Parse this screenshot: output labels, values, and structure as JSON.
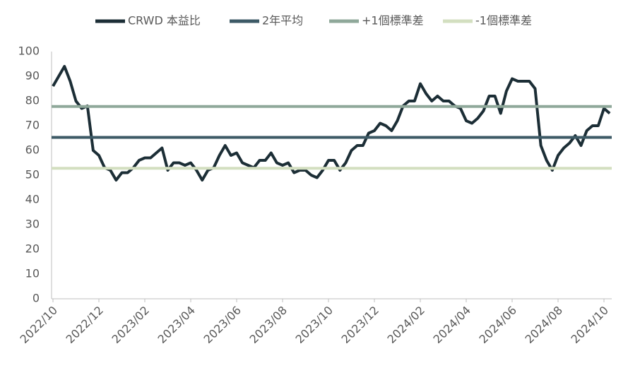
{
  "chart_data": {
    "type": "line",
    "categories": [
      "2022/10",
      null,
      null,
      null,
      null,
      null,
      null,
      null,
      "2022/12",
      null,
      null,
      null,
      null,
      null,
      null,
      null,
      "2023/02",
      null,
      null,
      null,
      null,
      null,
      null,
      null,
      "2023/04",
      null,
      null,
      null,
      null,
      null,
      null,
      null,
      "2023/06",
      null,
      null,
      null,
      null,
      null,
      null,
      null,
      "2023/08",
      null,
      null,
      null,
      null,
      null,
      null,
      null,
      "2023/10",
      null,
      null,
      null,
      null,
      null,
      null,
      null,
      "2023/12",
      null,
      null,
      null,
      null,
      null,
      null,
      null,
      "2024/02",
      null,
      null,
      null,
      null,
      null,
      null,
      null,
      "2024/04",
      null,
      null,
      null,
      null,
      null,
      null,
      null,
      "2024/06",
      null,
      null,
      null,
      null,
      null,
      null,
      null,
      "2024/08",
      null,
      null,
      null,
      null,
      null,
      null,
      null,
      "2024/10",
      null
    ],
    "series": [
      {
        "name": "CRWD 本益比",
        "color": "#1c2e36",
        "values": [
          86,
          90,
          94,
          88,
          80,
          77,
          78,
          60,
          58,
          53,
          52,
          48,
          51,
          51,
          53,
          56,
          57,
          57,
          59,
          61,
          52,
          55,
          55,
          54,
          55,
          52,
          48,
          52,
          53,
          58,
          62,
          58,
          59,
          55,
          54,
          53,
          56,
          56,
          59,
          55,
          54,
          55,
          51,
          52,
          52,
          50,
          49,
          52,
          56,
          56,
          52,
          55,
          60,
          62,
          62,
          67,
          68,
          71,
          70,
          68,
          72,
          78,
          80,
          80,
          87,
          83,
          80,
          82,
          80,
          80,
          78,
          77,
          72,
          71,
          73,
          76,
          82,
          82,
          75,
          84,
          89,
          88,
          88,
          88,
          85,
          62,
          56,
          52,
          58,
          61,
          63,
          66,
          62,
          68,
          70,
          70,
          77,
          75
        ]
      }
    ],
    "lines": [
      {
        "name": "2年平均",
        "color": "#3d5a66",
        "value": 65.3
      },
      {
        "name": "+1個標準差",
        "color": "#8fa89a",
        "value": 77.8
      },
      {
        "name": "-1個標準差",
        "color": "#d3dfc0",
        "value": 52.8
      }
    ],
    "ylim": [
      0,
      100
    ],
    "yticks": [
      0,
      10,
      20,
      30,
      40,
      50,
      60,
      70,
      80,
      90,
      100
    ],
    "grid": false
  }
}
